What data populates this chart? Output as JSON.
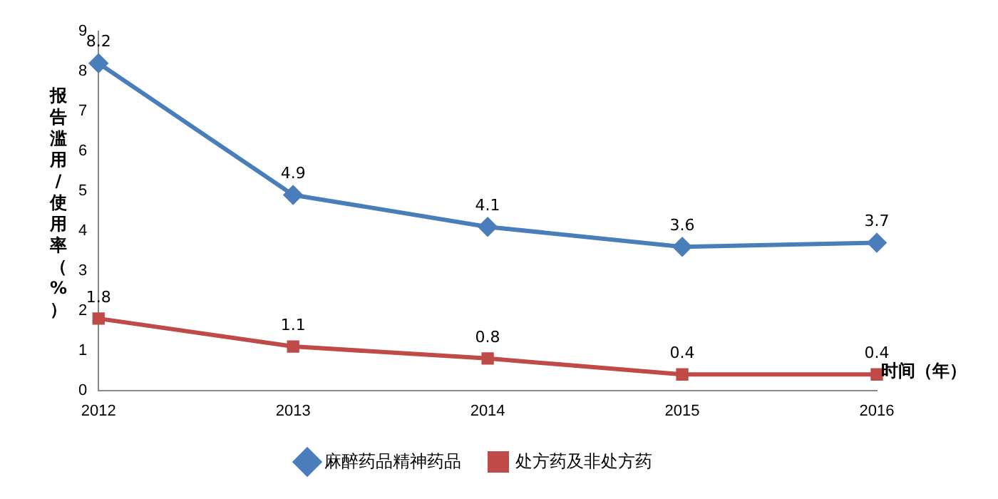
{
  "chart_data": {
    "type": "line",
    "xlabel": "时间（年）",
    "ylabel": "报告滥用/使用率（%）",
    "categories": [
      "2012",
      "2013",
      "2014",
      "2015",
      "2016"
    ],
    "series": [
      {
        "name": "麻醉药品精神药品",
        "color": "#4a7ebb",
        "marker": "diamond",
        "values": [
          8.2,
          4.9,
          4.1,
          3.6,
          3.7
        ]
      },
      {
        "name": "处方药及非处方药",
        "color": "#be4b48",
        "marker": "square",
        "values": [
          1.8,
          1.1,
          0.8,
          0.4,
          0.4
        ]
      }
    ],
    "ylim": [
      0,
      9
    ],
    "yticks": [
      0,
      1,
      2,
      3,
      4,
      5,
      6,
      7,
      8,
      9
    ],
    "grid": false,
    "legend": "bottom",
    "data_labels": true,
    "line_style": "solid"
  }
}
